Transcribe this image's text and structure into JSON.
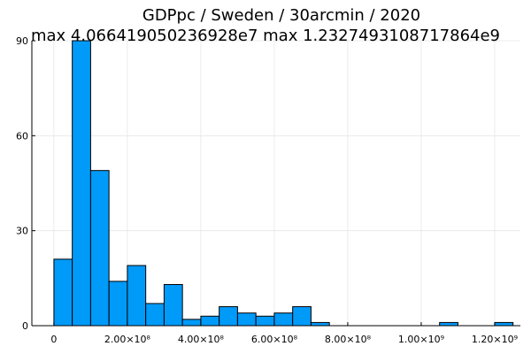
{
  "chart_data": {
    "type": "bar",
    "title": "GDPpc / Sweden / 30arcmin / 2020",
    "subtitle": "max 4.066419050236928e7  max 1.2327493108717864e9",
    "grid": true,
    "legend": "none",
    "bar_color": "#009af9",
    "bin_width": 50000000,
    "xlim": [
      -60000000,
      1270000000
    ],
    "ylim": [
      0,
      90
    ],
    "x_ticks": [
      {
        "value": 0,
        "label": "0"
      },
      {
        "value": 200000000,
        "label": "2.00×10⁸"
      },
      {
        "value": 400000000,
        "label": "4.00×10⁸"
      },
      {
        "value": 600000000,
        "label": "6.00×10⁸"
      },
      {
        "value": 800000000,
        "label": "8.00×10⁸"
      },
      {
        "value": 1000000000,
        "label": "1.00×10⁹"
      },
      {
        "value": 1200000000,
        "label": "1.20×10⁹"
      }
    ],
    "y_ticks": [
      {
        "value": 0,
        "label": "0"
      },
      {
        "value": 30,
        "label": "30"
      },
      {
        "value": 60,
        "label": "60"
      },
      {
        "value": 90,
        "label": "90"
      }
    ],
    "bins": [
      {
        "start": 0,
        "count": 21
      },
      {
        "start": 50000000,
        "count": 90
      },
      {
        "start": 100000000,
        "count": 49
      },
      {
        "start": 150000000,
        "count": 14
      },
      {
        "start": 200000000,
        "count": 19
      },
      {
        "start": 250000000,
        "count": 7
      },
      {
        "start": 300000000,
        "count": 13
      },
      {
        "start": 350000000,
        "count": 2
      },
      {
        "start": 400000000,
        "count": 3
      },
      {
        "start": 450000000,
        "count": 6
      },
      {
        "start": 500000000,
        "count": 4
      },
      {
        "start": 550000000,
        "count": 3
      },
      {
        "start": 600000000,
        "count": 4
      },
      {
        "start": 650000000,
        "count": 6
      },
      {
        "start": 700000000,
        "count": 1
      },
      {
        "start": 1050000000,
        "count": 1
      },
      {
        "start": 1200000000,
        "count": 1
      }
    ]
  }
}
